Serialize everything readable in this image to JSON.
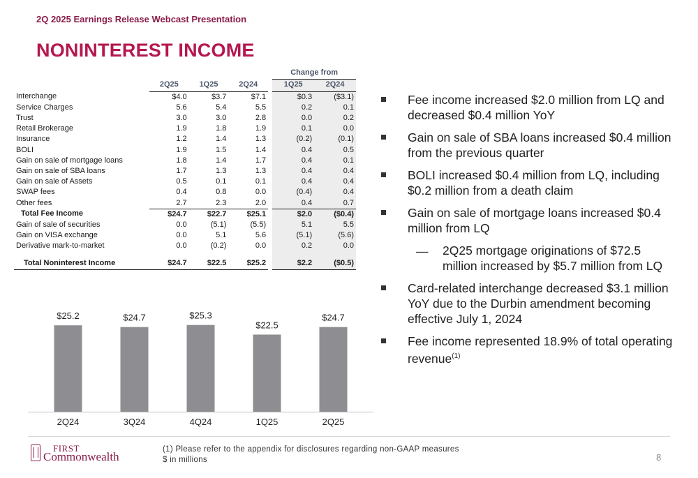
{
  "header": {
    "subtitle": "2Q 2025 Earnings Release Webcast Presentation",
    "title": "NONINTEREST INCOME"
  },
  "table": {
    "group_header": "Change from",
    "columns": [
      "2Q25",
      "1Q25",
      "2Q24",
      "1Q25",
      "2Q24"
    ],
    "rows": [
      {
        "label": "Interchange",
        "v": [
          "$4.0",
          "$3.7",
          "$7.1",
          "$0.3",
          "($3.1)"
        ]
      },
      {
        "label": "Service Charges",
        "v": [
          "5.6",
          "5.4",
          "5.5",
          "0.2",
          "0.1"
        ]
      },
      {
        "label": "Trust",
        "v": [
          "3.0",
          "3.0",
          "2.8",
          "0.0",
          "0.2"
        ]
      },
      {
        "label": "Retail Brokerage",
        "v": [
          "1.9",
          "1.8",
          "1.9",
          "0.1",
          "0.0"
        ]
      },
      {
        "label": "Insurance",
        "v": [
          "1.2",
          "1.4",
          "1.3",
          "(0.2)",
          "(0.1)"
        ]
      },
      {
        "label": "BOLI",
        "v": [
          "1.9",
          "1.5",
          "1.4",
          "0.4",
          "0.5"
        ]
      },
      {
        "label": "Gain on sale of mortgage loans",
        "v": [
          "1.8",
          "1.4",
          "1.7",
          "0.4",
          "0.1"
        ]
      },
      {
        "label": "Gain on sale of SBA loans",
        "v": [
          "1.7",
          "1.3",
          "1.3",
          "0.4",
          "0.4"
        ]
      },
      {
        "label": "Gain on sale of Assets",
        "v": [
          "0.5",
          "0.1",
          "0.1",
          "0.4",
          "0.4"
        ]
      },
      {
        "label": "SWAP fees",
        "v": [
          "0.4",
          "0.8",
          "0.0",
          "(0.4)",
          "0.4"
        ]
      },
      {
        "label": "Other fees",
        "v": [
          "2.7",
          "2.3",
          "2.0",
          "0.4",
          "0.7"
        ]
      }
    ],
    "total_fee": {
      "label": "Total Fee Income",
      "v": [
        "$24.7",
        "$22.7",
        "$25.1",
        "$2.0",
        "($0.4)"
      ]
    },
    "rows2": [
      {
        "label": "Gain of sale of securities",
        "v": [
          "0.0",
          "(5.1)",
          "(5.5)",
          "5.1",
          "5.5"
        ]
      },
      {
        "label": "Gain on VISA exchange",
        "v": [
          "0.0",
          "5.1",
          "5.6",
          "(5.1)",
          "(5.6)"
        ]
      },
      {
        "label": "Derivative mark-to-market",
        "v": [
          "0.0",
          "(0.2)",
          "0.0",
          "0.2",
          "0.0"
        ]
      }
    ],
    "grand_total": {
      "label": "Total Noninterest Income",
      "v": [
        "$24.7",
        "$22.5",
        "$25.2",
        "$2.2",
        "($0.5)"
      ]
    }
  },
  "chart_data": {
    "type": "bar",
    "categories": [
      "2Q24",
      "3Q24",
      "4Q24",
      "1Q25",
      "2Q25"
    ],
    "values": [
      25.2,
      24.7,
      25.3,
      22.5,
      24.7
    ],
    "data_labels": [
      "$25.2",
      "$24.7",
      "$25.3",
      "$22.5",
      "$24.7"
    ],
    "title": "",
    "xlabel": "",
    "ylabel": "",
    "ylim": [
      0,
      28.5
    ],
    "grid": false,
    "bar_color": "#8e8e92"
  },
  "bullets": [
    {
      "text": "Fee income increased $2.0 million from LQ and decreased $0.4 million YoY"
    },
    {
      "text": "Gain on sale of SBA loans increased $0.4 million from the previous quarter"
    },
    {
      "text": "BOLI increased $0.4 million from LQ, including $0.2 million from a death claim"
    },
    {
      "text": "Gain on sale of mortgage loans increased $0.4 million from LQ"
    },
    {
      "text": "Card-related interchange decreased $3.1 million YoY due to the Durbin amendment becoming effective July 1, 2024"
    },
    {
      "text": "Fee income represented 18.9% of total operating revenue",
      "sup": "(1)"
    }
  ],
  "sub_bullet": {
    "text": "2Q25 mortgage originations of $72.5 million increased by $5.7 million from LQ"
  },
  "footer": {
    "logo_line1": "FIRST",
    "logo_line2": "Commonwealth",
    "footnote1": "(1)   Please refer to the appendix for disclosures regarding non-GAAP measures",
    "footnote2": "$ in millions",
    "page_number": "8"
  },
  "colors": {
    "accent": "#b5174f",
    "header": "#8b1d4b",
    "bar": "#8e8e92",
    "shade": "#ededed"
  }
}
